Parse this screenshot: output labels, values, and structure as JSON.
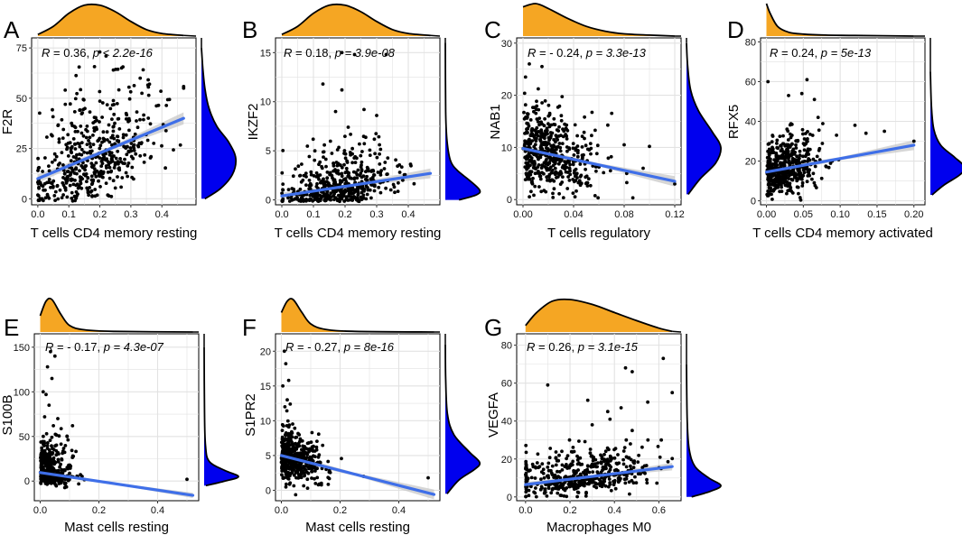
{
  "colors": {
    "marginal_x": "#F5A623",
    "marginal_y": "#0000EE",
    "fit_line": "#3F6FE8",
    "ci_band": "#C8C8C8",
    "grid": "#E2E2E2",
    "point": "#000000"
  },
  "chart_data": [
    {
      "type": "scatter",
      "panel": "A",
      "xlabel": "T cells CD4 memory resting",
      "ylabel": "F2R",
      "annotation": {
        "R": "0.36",
        "sep": ", ",
        "p_text": "p < 2.2e-16"
      },
      "xlim": [
        -0.02,
        0.51
      ],
      "ylim": [
        -3,
        80
      ],
      "xticks": [
        0.0,
        0.1,
        0.2,
        0.3,
        0.4
      ],
      "xtick_labels": [
        "0.0",
        "0.1",
        "0.2",
        "0.3",
        "0.4"
      ],
      "yticks": [
        0,
        25,
        50,
        75
      ],
      "ytick_labels": [
        "0",
        "25",
        "50",
        "75"
      ],
      "fit": {
        "x0": 0.0,
        "y0": 10,
        "x1": 0.47,
        "y1": 40,
        "ci": 3
      },
      "marginal_x_pts": [
        [
          0.0,
          0.05
        ],
        [
          0.05,
          0.3
        ],
        [
          0.1,
          0.7
        ],
        [
          0.15,
          0.95
        ],
        [
          0.2,
          0.95
        ],
        [
          0.25,
          0.75
        ],
        [
          0.3,
          0.45
        ],
        [
          0.35,
          0.2
        ],
        [
          0.4,
          0.08
        ],
        [
          0.47,
          0.02
        ]
      ],
      "marginal_y_pts": [
        [
          0,
          0.1
        ],
        [
          5,
          0.55
        ],
        [
          12,
          0.9
        ],
        [
          20,
          1.0
        ],
        [
          28,
          0.8
        ],
        [
          36,
          0.45
        ],
        [
          45,
          0.22
        ],
        [
          55,
          0.1
        ],
        [
          65,
          0.04
        ],
        [
          75,
          0.0
        ]
      ],
      "gen": {
        "n": 480,
        "seed": 11,
        "xdist": [
          0.18,
          0.1,
          0.0,
          0.47
        ],
        "ylin": [
          10,
          64
        ],
        "ysd": 11,
        "skew": 1.6,
        "ymax": 74,
        "extra": [
          [
            0.2,
            73
          ],
          [
            0.22,
            71
          ],
          [
            0.27,
            65
          ],
          [
            0.47,
            55
          ],
          [
            0.36,
            57
          ],
          [
            0.33,
            60
          ]
        ]
      }
    },
    {
      "type": "scatter",
      "panel": "B",
      "xlabel": "T cells CD4 memory resting",
      "ylabel": "IKZF2",
      "annotation": {
        "R": "0.18",
        "sep": ", ",
        "p_text": "p = 3.9e-08"
      },
      "xlim": [
        -0.02,
        0.5
      ],
      "ylim": [
        -0.5,
        16.5
      ],
      "xticks": [
        0.0,
        0.1,
        0.2,
        0.3,
        0.4
      ],
      "xtick_labels": [
        "0.0",
        "0.1",
        "0.2",
        "0.3",
        "0.4"
      ],
      "yticks": [
        0,
        5,
        10,
        15
      ],
      "ytick_labels": [
        "0",
        "5",
        "10",
        "15"
      ],
      "fit": {
        "x0": 0.0,
        "y0": 0.4,
        "x1": 0.47,
        "y1": 2.7,
        "ci": 0.5
      },
      "marginal_x_pts": [
        [
          0.0,
          0.05
        ],
        [
          0.05,
          0.3
        ],
        [
          0.1,
          0.7
        ],
        [
          0.15,
          0.95
        ],
        [
          0.2,
          0.95
        ],
        [
          0.25,
          0.75
        ],
        [
          0.3,
          0.45
        ],
        [
          0.35,
          0.2
        ],
        [
          0.4,
          0.08
        ],
        [
          0.47,
          0.02
        ]
      ],
      "marginal_y_pts": [
        [
          0,
          0.4
        ],
        [
          0.5,
          0.9
        ],
        [
          1,
          1.0
        ],
        [
          2,
          0.7
        ],
        [
          3,
          0.35
        ],
        [
          4,
          0.15
        ],
        [
          6,
          0.05
        ],
        [
          9,
          0.01
        ],
        [
          16,
          0.0
        ]
      ],
      "gen": {
        "n": 480,
        "seed": 23,
        "xdist": [
          0.17,
          0.09,
          0.0,
          0.46
        ],
        "ylin": [
          0.4,
          4.9
        ],
        "ysd": 0.9,
        "skew": 2.4,
        "ymax": 8,
        "extra": [
          [
            0.19,
            15
          ],
          [
            0.23,
            14.8
          ],
          [
            0.33,
            14.8
          ],
          [
            0.13,
            11.8
          ],
          [
            0.19,
            11.2
          ],
          [
            0.26,
            9.2
          ],
          [
            0.17,
            9.0
          ],
          [
            0.3,
            8.6
          ],
          [
            0.21,
            7.4
          ]
        ]
      }
    },
    {
      "type": "scatter",
      "panel": "C",
      "xlabel": "T cells regulatory",
      "ylabel": "NAB1",
      "annotation": {
        "R": "- 0.24",
        "sep": ", ",
        "p_text": "p = 3.3e-13"
      },
      "xlim": [
        -0.005,
        0.125
      ],
      "ylim": [
        -1,
        31
      ],
      "xticks": [
        0.0,
        0.04,
        0.08,
        0.12
      ],
      "xtick_labels": [
        "0.00",
        "0.04",
        "0.08",
        "0.12"
      ],
      "yticks": [
        0,
        10,
        20,
        30
      ],
      "ytick_labels": [
        "0",
        "10",
        "20",
        "30"
      ],
      "fit": {
        "x0": 0.0,
        "y0": 9.8,
        "x1": 0.12,
        "y1": 3.5,
        "ci": 1.0
      },
      "marginal_x_pts": [
        [
          0.0,
          0.9
        ],
        [
          0.01,
          1.0
        ],
        [
          0.02,
          0.85
        ],
        [
          0.035,
          0.55
        ],
        [
          0.05,
          0.3
        ],
        [
          0.065,
          0.15
        ],
        [
          0.08,
          0.07
        ],
        [
          0.1,
          0.03
        ],
        [
          0.12,
          0.0
        ]
      ],
      "marginal_y_pts": [
        [
          1,
          0.05
        ],
        [
          4,
          0.4
        ],
        [
          7,
          0.85
        ],
        [
          10,
          1.0
        ],
        [
          13,
          0.75
        ],
        [
          17,
          0.35
        ],
        [
          21,
          0.12
        ],
        [
          26,
          0.03
        ],
        [
          30,
          0.0
        ]
      ],
      "gen": {
        "n": 480,
        "seed": 37,
        "xdist": [
          0.0,
          0.028,
          0.0,
          0.12
        ],
        "halfnormal": true,
        "ylin": [
          9.8,
          -52
        ],
        "ysd": 3.6,
        "skew": 1.3,
        "ymax": 26,
        "extra": [
          [
            0.015,
            25.5
          ],
          [
            0.005,
            26
          ],
          [
            0.002,
            23.5
          ],
          [
            0.08,
            10.5
          ],
          [
            0.1,
            10.2
          ],
          [
            0.12,
            3.0
          ],
          [
            0.095,
            6.0
          ]
        ]
      }
    },
    {
      "type": "scatter",
      "panel": "D",
      "xlabel": "T cells CD4 memory activated",
      "ylabel": "RFX5",
      "annotation": {
        "R": "0.24",
        "sep": ", ",
        "p_text": "p = 5e-13"
      },
      "xlim": [
        -0.008,
        0.215
      ],
      "ylim": [
        -2,
        82
      ],
      "xticks": [
        0.0,
        0.05,
        0.1,
        0.15,
        0.2
      ],
      "xtick_labels": [
        "0.00",
        "0.05",
        "0.10",
        "0.15",
        "0.20"
      ],
      "yticks": [
        0,
        20,
        40,
        60,
        80
      ],
      "ytick_labels": [
        "0",
        "20",
        "40",
        "60",
        "80"
      ],
      "fit": {
        "x0": 0.0,
        "y0": 14.5,
        "x1": 0.2,
        "y1": 28,
        "ci": 2.5
      },
      "marginal_x_pts": [
        [
          0.0,
          1.0
        ],
        [
          0.005,
          0.7
        ],
        [
          0.015,
          0.3
        ],
        [
          0.03,
          0.12
        ],
        [
          0.05,
          0.06
        ],
        [
          0.08,
          0.03
        ],
        [
          0.12,
          0.02
        ],
        [
          0.2,
          0.0
        ]
      ],
      "marginal_y_pts": [
        [
          3,
          0.05
        ],
        [
          8,
          0.4
        ],
        [
          13,
          0.85
        ],
        [
          17,
          1.0
        ],
        [
          22,
          0.7
        ],
        [
          28,
          0.3
        ],
        [
          36,
          0.1
        ],
        [
          48,
          0.03
        ],
        [
          65,
          0.0
        ]
      ],
      "gen": {
        "n": 480,
        "seed": 41,
        "xdist": [
          0.0,
          0.035,
          0.0,
          0.2
        ],
        "halfnormal": true,
        "ylin": [
          14.5,
          67
        ],
        "ysd": 6,
        "skew": 1.4,
        "ymax": 45,
        "extra": [
          [
            0.055,
            61
          ],
          [
            0.048,
            54
          ],
          [
            0.03,
            53
          ],
          [
            0.065,
            51
          ],
          [
            0.002,
            60
          ],
          [
            0.135,
            34
          ],
          [
            0.16,
            35
          ],
          [
            0.2,
            30
          ],
          [
            0.12,
            38
          ],
          [
            0.095,
            33
          ],
          [
            0.07,
            42
          ]
        ]
      }
    },
    {
      "type": "scatter",
      "panel": "E",
      "xlabel": "Mast cells resting",
      "ylabel": "S100B",
      "annotation": {
        "R": "- 0.17",
        "sep": ", ",
        "p_text": "p = 4.3e-07"
      },
      "xlim": [
        -0.02,
        0.54
      ],
      "ylim": [
        -22,
        165
      ],
      "xticks": [
        0.0,
        0.2,
        0.4
      ],
      "xtick_labels": [
        "0.0",
        "0.2",
        "0.4"
      ],
      "yticks": [
        0,
        50,
        100,
        150
      ],
      "ytick_labels": [
        "0",
        "50",
        "100",
        "150"
      ],
      "fit": {
        "x0": 0.0,
        "y0": 9.5,
        "x1": 0.52,
        "y1": -16,
        "ci": 3
      },
      "marginal_x_pts": [
        [
          0.0,
          0.5
        ],
        [
          0.02,
          0.95
        ],
        [
          0.04,
          1.0
        ],
        [
          0.07,
          0.55
        ],
        [
          0.1,
          0.2
        ],
        [
          0.15,
          0.07
        ],
        [
          0.25,
          0.02
        ],
        [
          0.52,
          0.0
        ]
      ],
      "marginal_y_pts": [
        [
          -5,
          0.05
        ],
        [
          0,
          0.6
        ],
        [
          5,
          1.0
        ],
        [
          12,
          0.6
        ],
        [
          22,
          0.15
        ],
        [
          40,
          0.04
        ],
        [
          80,
          0.01
        ],
        [
          150,
          0.0
        ]
      ],
      "gen": {
        "n": 480,
        "seed": 53,
        "xdist": [
          0.0,
          0.05,
          0.0,
          0.35
        ],
        "halfnormal": true,
        "ylin": [
          8,
          -20
        ],
        "ysd": 5,
        "skew": 3.6,
        "ymax": 60,
        "extra": [
          [
            0.035,
            145
          ],
          [
            0.05,
            140
          ],
          [
            0.025,
            128
          ],
          [
            0.04,
            115
          ],
          [
            0.01,
            100
          ],
          [
            0.02,
            97
          ],
          [
            0.03,
            85
          ],
          [
            0.015,
            72
          ],
          [
            0.06,
            70
          ],
          [
            0.045,
            62
          ],
          [
            0.11,
            62
          ],
          [
            0.5,
            2
          ]
        ]
      }
    },
    {
      "type": "scatter",
      "panel": "F",
      "xlabel": "Mast cells resting",
      "ylabel": "S1PR2",
      "annotation": {
        "R": "- 0.27",
        "sep": ", ",
        "p_text": "p = 8e-16"
      },
      "xlim": [
        -0.02,
        0.54
      ],
      "ylim": [
        -1.5,
        22.5
      ],
      "xticks": [
        0.0,
        0.2,
        0.4
      ],
      "xtick_labels": [
        "0.0",
        "0.2",
        "0.4"
      ],
      "yticks": [
        0,
        5,
        10,
        15,
        20
      ],
      "ytick_labels": [
        "0",
        "5",
        "10",
        "15",
        "20"
      ],
      "fit": {
        "x0": 0.0,
        "y0": 5.0,
        "x1": 0.52,
        "y1": -0.6,
        "ci": 0.7
      },
      "marginal_x_pts": [
        [
          0.0,
          0.6
        ],
        [
          0.02,
          0.95
        ],
        [
          0.04,
          1.0
        ],
        [
          0.07,
          0.6
        ],
        [
          0.1,
          0.25
        ],
        [
          0.15,
          0.08
        ],
        [
          0.25,
          0.02
        ],
        [
          0.52,
          0.0
        ]
      ],
      "marginal_y_pts": [
        [
          -0.5,
          0.05
        ],
        [
          1.5,
          0.4
        ],
        [
          3,
          0.85
        ],
        [
          4,
          1.0
        ],
        [
          5.5,
          0.7
        ],
        [
          8,
          0.25
        ],
        [
          11,
          0.06
        ],
        [
          16,
          0.01
        ],
        [
          21,
          0.0
        ]
      ],
      "gen": {
        "n": 480,
        "seed": 67,
        "xdist": [
          0.0,
          0.06,
          0.0,
          0.35
        ],
        "halfnormal": true,
        "ylin": [
          5,
          -11
        ],
        "ysd": 1.6,
        "skew": 1.2,
        "ymax": 12,
        "extra": [
          [
            0.01,
            20
          ],
          [
            0.015,
            18.2
          ],
          [
            0.025,
            15.8
          ],
          [
            0.005,
            15
          ],
          [
            0.02,
            13
          ],
          [
            0.03,
            12.4
          ],
          [
            0.012,
            12
          ],
          [
            0.5,
            1.8
          ],
          [
            0.28,
            2.0
          ]
        ]
      }
    },
    {
      "type": "scatter",
      "panel": "G",
      "xlabel": "Macrophages M0",
      "ylabel": "VEGFA",
      "annotation": {
        "R": "0.26",
        "sep": ", ",
        "p_text": "p = 3.1e-15"
      },
      "xlim": [
        -0.04,
        0.7
      ],
      "ylim": [
        -2,
        86
      ],
      "xticks": [
        0.0,
        0.2,
        0.4,
        0.6
      ],
      "xtick_labels": [
        "0.0",
        "0.2",
        "0.4",
        "0.6"
      ],
      "yticks": [
        0,
        20,
        40,
        60,
        80
      ],
      "ytick_labels": [
        "0",
        "20",
        "40",
        "60",
        "80"
      ],
      "fit": {
        "x0": 0.0,
        "y0": 6.5,
        "x1": 0.66,
        "y1": 16,
        "ci": 2
      },
      "marginal_x_pts": [
        [
          0.0,
          0.2
        ],
        [
          0.05,
          0.6
        ],
        [
          0.12,
          0.95
        ],
        [
          0.2,
          1.0
        ],
        [
          0.3,
          0.85
        ],
        [
          0.4,
          0.6
        ],
        [
          0.5,
          0.35
        ],
        [
          0.6,
          0.12
        ],
        [
          0.66,
          0.02
        ]
      ],
      "marginal_y_pts": [
        [
          0,
          0.15
        ],
        [
          3,
          0.7
        ],
        [
          6,
          1.0
        ],
        [
          10,
          0.65
        ],
        [
          16,
          0.25
        ],
        [
          25,
          0.08
        ],
        [
          40,
          0.02
        ],
        [
          70,
          0.0
        ]
      ],
      "gen": {
        "n": 480,
        "seed": 79,
        "xdist": [
          0.25,
          0.16,
          0.0,
          0.66
        ],
        "ylin": [
          6.5,
          14
        ],
        "ysd": 4,
        "skew": 2.0,
        "ymax": 30,
        "extra": [
          [
            0.62,
            73
          ],
          [
            0.66,
            55
          ],
          [
            0.45,
            68
          ],
          [
            0.48,
            66
          ],
          [
            0.1,
            59
          ],
          [
            0.28,
            51
          ],
          [
            0.43,
            47
          ],
          [
            0.37,
            45
          ],
          [
            0.38,
            41
          ],
          [
            0.55,
            50
          ],
          [
            0.3,
            38
          ],
          [
            0.48,
            35
          ]
        ]
      }
    }
  ]
}
